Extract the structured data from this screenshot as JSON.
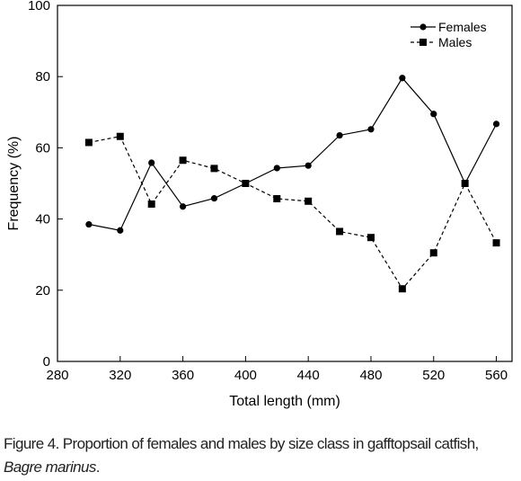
{
  "chart_data": {
    "type": "line",
    "title": "",
    "xlabel": "Total length (mm)",
    "ylabel": "Frequency (%)",
    "xlim": [
      280,
      570
    ],
    "ylim": [
      0,
      100
    ],
    "xticks": [
      280,
      320,
      360,
      400,
      440,
      480,
      520,
      560
    ],
    "yticks": [
      0,
      20,
      40,
      60,
      80,
      100
    ],
    "grid": false,
    "legend_position": "top-right",
    "x": [
      300,
      320,
      340,
      360,
      380,
      400,
      420,
      440,
      460,
      480,
      500,
      520,
      540,
      560
    ],
    "series": [
      {
        "name": "Females",
        "marker": "circle",
        "line": "solid",
        "values": [
          38.5,
          36.8,
          55.8,
          43.5,
          45.8,
          50.0,
          54.3,
          55.0,
          63.5,
          65.2,
          79.6,
          69.5,
          50.0,
          66.7
        ]
      },
      {
        "name": "Males",
        "marker": "square",
        "line": "dashed",
        "values": [
          61.5,
          63.2,
          44.2,
          56.5,
          54.2,
          50.0,
          45.7,
          45.0,
          36.5,
          34.8,
          20.4,
          30.5,
          50.0,
          33.3
        ]
      }
    ]
  },
  "caption": {
    "prefix": "Figure 4. Proportion of females and males by size class in gafftopsail catfish,",
    "species": "Bagre marinus",
    "suffix": "."
  }
}
